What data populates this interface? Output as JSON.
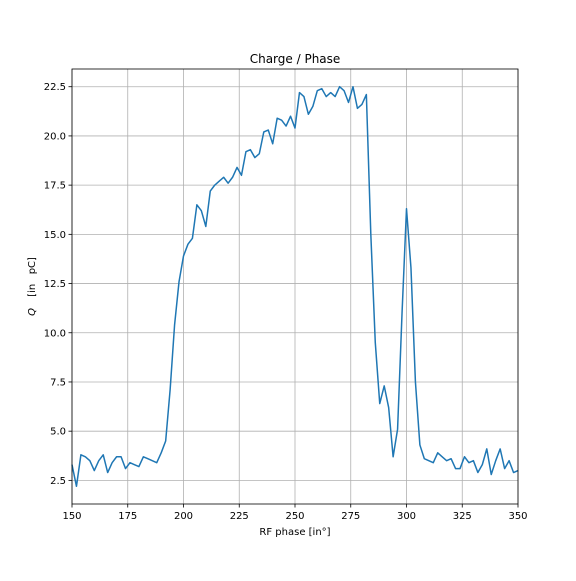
{
  "chart_data": {
    "type": "line",
    "title": "Charge / Phase",
    "xlabel": "RF phase [in°]",
    "ylabel_math": "Q",
    "ylabel_units": "[in   pC]",
    "xlim": [
      150,
      350
    ],
    "ylim": [
      1.3,
      23.4
    ],
    "grid": true,
    "legend": "none",
    "x_ticks": [
      "150",
      "175",
      "200",
      "225",
      "250",
      "275",
      "300",
      "325",
      "350"
    ],
    "x_tick_values": [
      150,
      175,
      200,
      225,
      250,
      275,
      300,
      325,
      350
    ],
    "y_ticks": [
      "2.5",
      "5.0",
      "7.5",
      "10.0",
      "12.5",
      "15.0",
      "17.5",
      "20.0",
      "22.5"
    ],
    "y_tick_values": [
      2.5,
      5.0,
      7.5,
      10.0,
      12.5,
      15.0,
      17.5,
      20.0,
      22.5
    ],
    "series": [
      {
        "color": "#1f77b4",
        "x": [
          150,
          152,
          154,
          156,
          158,
          160,
          162,
          164,
          166,
          168,
          170,
          172,
          174,
          176,
          178,
          180,
          182,
          184,
          186,
          188,
          190,
          192,
          194,
          196,
          198,
          200,
          202,
          204,
          206,
          208,
          210,
          212,
          214,
          216,
          218,
          220,
          222,
          224,
          226,
          228,
          230,
          232,
          234,
          236,
          238,
          240,
          242,
          244,
          246,
          248,
          250,
          252,
          254,
          256,
          258,
          260,
          262,
          264,
          266,
          268,
          270,
          272,
          274,
          276,
          278,
          280,
          282,
          284,
          286,
          288,
          290,
          292,
          294,
          296,
          298,
          300,
          302,
          304,
          306,
          308,
          310,
          312,
          314,
          316,
          318,
          320,
          322,
          324,
          326,
          328,
          330,
          332,
          334,
          336,
          338,
          340,
          342,
          344,
          346,
          348,
          350
        ],
        "y": [
          3.3,
          2.2,
          3.8,
          3.7,
          3.5,
          3.0,
          3.5,
          3.8,
          2.9,
          3.4,
          3.7,
          3.7,
          3.1,
          3.4,
          3.3,
          3.2,
          3.7,
          3.6,
          3.5,
          3.4,
          3.9,
          4.5,
          7.1,
          10.4,
          12.6,
          13.9,
          14.5,
          14.8,
          16.5,
          16.2,
          15.4,
          17.2,
          17.5,
          17.7,
          17.9,
          17.6,
          17.9,
          18.4,
          18.0,
          19.2,
          19.3,
          18.9,
          19.1,
          20.2,
          20.3,
          19.6,
          20.9,
          20.8,
          20.5,
          21.0,
          20.4,
          22.2,
          22.0,
          21.1,
          21.5,
          22.3,
          22.4,
          22.0,
          22.2,
          22.0,
          22.5,
          22.3,
          21.7,
          22.5,
          21.4,
          21.6,
          22.1,
          15.0,
          9.5,
          6.4,
          7.3,
          6.2,
          3.7,
          5.1,
          11.0,
          16.3,
          13.3,
          7.5,
          4.3,
          3.6,
          3.5,
          3.4,
          3.9,
          3.7,
          3.5,
          3.6,
          3.1,
          3.1,
          3.7,
          3.4,
          3.5,
          2.9,
          3.3,
          4.1,
          2.8,
          3.5,
          4.1,
          3.1,
          3.5,
          2.9,
          3.0
        ]
      }
    ]
  }
}
